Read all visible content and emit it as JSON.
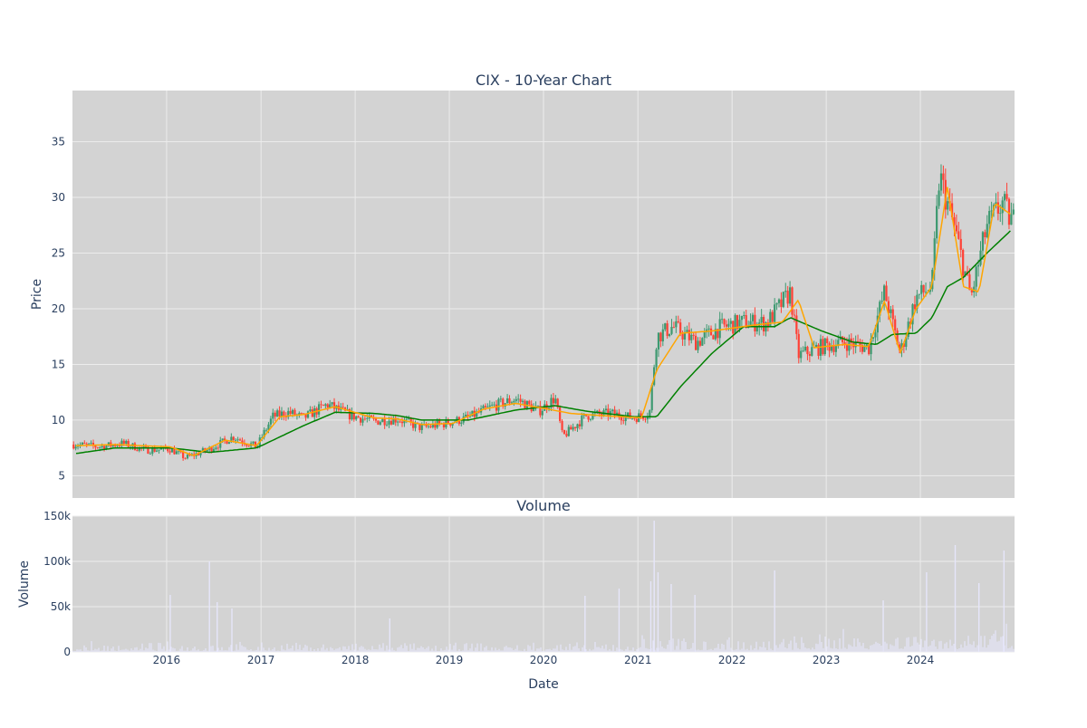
{
  "chart_data": [
    {
      "type": "candlestick",
      "title": "CIX - 10-Year Chart",
      "xlabel": "",
      "ylabel": "Price",
      "x_range": [
        "2015-01-01",
        "2024-12-31"
      ],
      "ylim": [
        3,
        39.6
      ],
      "y_ticks": [
        5,
        10,
        15,
        20,
        25,
        30,
        35
      ],
      "grid": true,
      "colors": {
        "background": "#d3d3d3",
        "grid": "#ececec",
        "up": "#3d9970",
        "down": "#ff4136",
        "ma_short": "#ffa500",
        "ma_long": "#008000",
        "text": "#2a3f5f"
      },
      "series": [
        {
          "kind": "price",
          "x": [
            "2015-01",
            "2015-04",
            "2015-07",
            "2015-10",
            "2016-01",
            "2016-03",
            "2016-06",
            "2016-09",
            "2016-12",
            "2017-02",
            "2017-04",
            "2017-06",
            "2017-09",
            "2017-12",
            "2018-03",
            "2018-06",
            "2018-09",
            "2018-12",
            "2019-03",
            "2019-06",
            "2019-09",
            "2019-12",
            "2020-02",
            "2020-03",
            "2020-06",
            "2020-09",
            "2020-12",
            "2021-02",
            "2021-03",
            "2021-05",
            "2021-08",
            "2021-11",
            "2022-02",
            "2022-05",
            "2022-08",
            "2022-09",
            "2022-12",
            "2023-03",
            "2023-06",
            "2023-08",
            "2023-10",
            "2023-12",
            "2024-02",
            "2024-03",
            "2024-05",
            "2024-07",
            "2024-09",
            "2024-11",
            "2024-12"
          ],
          "y": [
            7.8,
            7.6,
            7.9,
            7.3,
            7.4,
            6.6,
            7.4,
            8.5,
            7.6,
            10.3,
            10.7,
            10.2,
            11.4,
            10.4,
            9.9,
            10.1,
            9.3,
            9.7,
            10.2,
            11.2,
            11.9,
            10.8,
            12.0,
            8.5,
            10.4,
            10.6,
            10.2,
            10.6,
            17.5,
            18.4,
            17.0,
            18.3,
            18.8,
            18.7,
            21.5,
            15.8,
            16.6,
            17.0,
            16.5,
            21.5,
            16.0,
            21.0,
            22.0,
            32.0,
            27.0,
            21.0,
            27.5,
            29.5,
            28.0
          ]
        },
        {
          "name": "",
          "kind": "ma_short",
          "x": [
            "2015-01",
            "2015-06",
            "2016-01",
            "2016-04",
            "2016-08",
            "2016-12",
            "2017-03",
            "2017-06",
            "2017-10",
            "2018-03",
            "2018-06",
            "2018-09",
            "2019-01",
            "2019-05",
            "2019-09",
            "2020-01",
            "2020-04",
            "2020-08",
            "2021-01",
            "2021-03",
            "2021-06",
            "2021-10",
            "2022-03",
            "2022-07",
            "2022-09",
            "2022-11",
            "2023-03",
            "2023-06",
            "2023-08",
            "2023-10",
            "2023-12",
            "2024-02",
            "2024-04",
            "2024-06",
            "2024-08",
            "2024-10",
            "2024-12"
          ],
          "y": [
            7.7,
            7.8,
            7.6,
            6.8,
            8.2,
            7.7,
            10.3,
            10.5,
            11.2,
            10.2,
            10.1,
            9.6,
            9.7,
            11.0,
            11.5,
            11.0,
            10.6,
            10.4,
            10.2,
            14.5,
            17.8,
            18.0,
            18.5,
            18.8,
            20.8,
            16.5,
            16.8,
            16.6,
            20.7,
            16.0,
            20.0,
            22.0,
            31.0,
            22.0,
            21.5,
            29.5,
            28.5
          ]
        },
        {
          "name": "",
          "kind": "ma_long",
          "x": [
            "2015-01",
            "2015-06",
            "2016-01",
            "2016-06",
            "2016-12",
            "2017-06",
            "2017-10",
            "2018-03",
            "2018-06",
            "2018-09",
            "2019-03",
            "2019-09",
            "2020-02",
            "2020-06",
            "2020-12",
            "2021-03",
            "2021-06",
            "2021-10",
            "2022-02",
            "2022-06",
            "2022-08",
            "2022-12",
            "2023-04",
            "2023-07",
            "2023-09",
            "2023-12",
            "2024-02",
            "2024-04",
            "2024-06",
            "2024-09",
            "2024-12"
          ],
          "y": [
            7.0,
            7.5,
            7.5,
            7.1,
            7.5,
            9.5,
            10.7,
            10.6,
            10.4,
            10.0,
            10.0,
            10.9,
            11.3,
            10.8,
            10.3,
            10.3,
            13.0,
            16.0,
            18.4,
            18.4,
            19.2,
            18.0,
            17.0,
            16.8,
            17.7,
            17.8,
            19.2,
            22.0,
            22.8,
            25.0,
            27.0
          ]
        }
      ]
    },
    {
      "type": "bar",
      "title": "Volume",
      "xlabel": "Date",
      "ylabel": "Volume",
      "x_range": [
        "2015-01-01",
        "2024-12-31"
      ],
      "ylim": [
        0,
        150000
      ],
      "y_ticks": [
        0,
        50000,
        100000,
        150000
      ],
      "y_tick_labels": [
        "0",
        "50k",
        "100k",
        "150k"
      ],
      "x_ticks": [
        "2016-01-01",
        "2017-01-01",
        "2018-01-01",
        "2019-01-01",
        "2020-01-01",
        "2021-01-01",
        "2022-01-01",
        "2023-01-01",
        "2024-01-01"
      ],
      "x_tick_labels": [
        "2016",
        "2017",
        "2018",
        "2019",
        "2020",
        "2021",
        "2022",
        "2023",
        "2024"
      ],
      "grid": true,
      "colors": {
        "background": "#d3d3d3",
        "grid": "#ececec",
        "bar": "#e6e6fa",
        "text": "#2a3f5f"
      },
      "spikes": [
        {
          "x": "2016-01-15",
          "y": 63000
        },
        {
          "x": "2016-06-15",
          "y": 100000
        },
        {
          "x": "2016-07-15",
          "y": 55000
        },
        {
          "x": "2016-09-10",
          "y": 48000
        },
        {
          "x": "2018-05-15",
          "y": 37000
        },
        {
          "x": "2020-06-10",
          "y": 62000
        },
        {
          "x": "2020-10-20",
          "y": 70000
        },
        {
          "x": "2021-02-20",
          "y": 78000
        },
        {
          "x": "2021-03-05",
          "y": 145000
        },
        {
          "x": "2021-03-20",
          "y": 88000
        },
        {
          "x": "2021-05-10",
          "y": 75000
        },
        {
          "x": "2021-08-10",
          "y": 63000
        },
        {
          "x": "2022-06-15",
          "y": 90000
        },
        {
          "x": "2023-08-10",
          "y": 57000
        },
        {
          "x": "2024-01-25",
          "y": 88000
        },
        {
          "x": "2024-05-15",
          "y": 118000
        },
        {
          "x": "2024-08-15",
          "y": 76000
        },
        {
          "x": "2024-11-20",
          "y": 112000
        }
      ]
    }
  ]
}
